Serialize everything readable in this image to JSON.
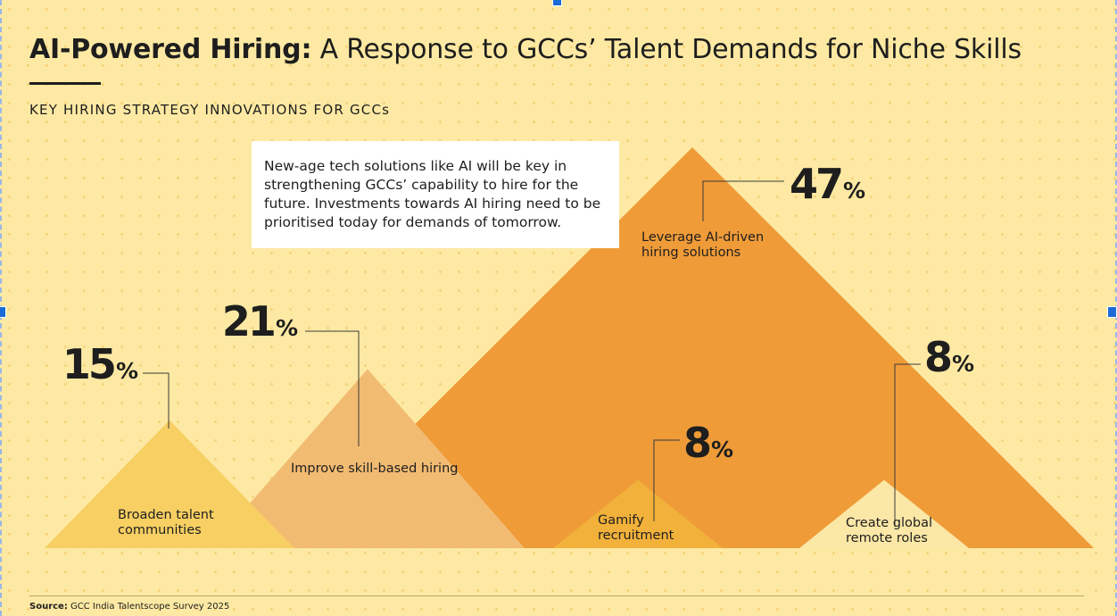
{
  "header": {
    "title_bold": "AI-Powered Hiring:",
    "title_rest": "A Response to GCCs’ Talent Demands for Niche Skills",
    "subtitle": "KEY HIRING STRATEGY INNOVATIONS FOR GCCs"
  },
  "callout": {
    "text": "New-age tech solutions like AI will be key in strengthening GCCs’ capability to hire for the future. Investments towards AI hiring need to be prioritised today for demands of tomorrow."
  },
  "footer": {
    "source_label": "Source:",
    "source_text": "GCC India Talentscope Survey 2025"
  },
  "colors": {
    "background": "#fde9a3",
    "dots": "#f5d27a",
    "text": "#1e1e1e"
  },
  "chart_data": {
    "type": "bar",
    "orientation": "triangular",
    "categories": [
      "Broaden talent communities",
      "Improve skill-based hiring",
      "Leverage AI-driven hiring solutions",
      "Gamify recruitment",
      "Create global remote roles"
    ],
    "label_lines": [
      [
        "Broaden talent",
        "communities"
      ],
      [
        "Improve skill-based hiring"
      ],
      [
        "Leverage AI-driven",
        "hiring solutions"
      ],
      [
        "Gamify",
        "recruitment"
      ],
      [
        "Create global",
        "remote roles"
      ]
    ],
    "values": [
      15,
      21,
      47,
      8,
      8
    ],
    "value_labels": [
      "15",
      "21",
      "47",
      "8",
      "8"
    ],
    "unit": "%",
    "colors": [
      "#f7cf62",
      "#f2bb72",
      "#ef9b38",
      "#f2b13a",
      "#fbe7a6"
    ],
    "draw_order": [
      2,
      1,
      0,
      3,
      4
    ],
    "ylim": [
      0,
      47
    ]
  }
}
